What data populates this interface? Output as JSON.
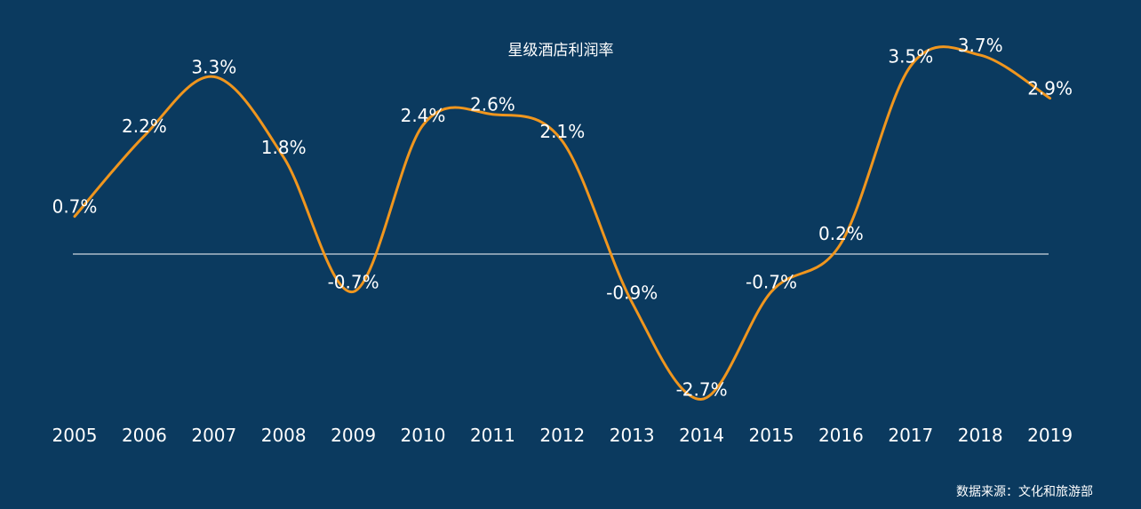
{
  "chart_data": {
    "type": "line",
    "title": "星级酒店利润率",
    "xlabel": "",
    "ylabel": "",
    "categories": [
      "2005",
      "2006",
      "2007",
      "2008",
      "2009",
      "2010",
      "2011",
      "2012",
      "2013",
      "2014",
      "2015",
      "2016",
      "2017",
      "2018",
      "2019"
    ],
    "series": [
      {
        "values": [
          0.7,
          2.2,
          3.3,
          1.8,
          -0.7,
          2.4,
          2.6,
          2.1,
          -0.9,
          -2.7,
          -0.7,
          0.2,
          3.5,
          3.7,
          2.9
        ],
        "labels": [
          "0.7%",
          "2.2%",
          "3.3%",
          "1.8%",
          "-0.7%",
          "2.4%",
          "2.6%",
          "2.1%",
          "-0.9%",
          "-2.7%",
          "-0.7%",
          "0.2%",
          "3.5%",
          "3.7%",
          "2.9%"
        ],
        "color": "#f0961e"
      }
    ],
    "ylim": [
      -3,
      4
    ],
    "grid": false,
    "zero_line": true,
    "line_style": "smooth"
  },
  "source_note": "数据来源：文化和旅游部",
  "colors": {
    "background": "#0b3a5f",
    "line": "#f0961e",
    "zero_line": "#ffffff",
    "text": "#ffffff"
  }
}
